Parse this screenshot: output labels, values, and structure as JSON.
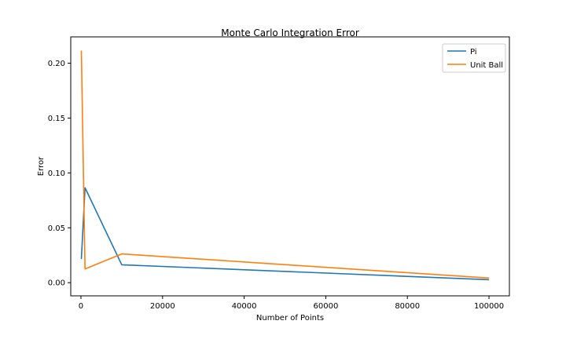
{
  "chart_data": {
    "type": "line",
    "title": "Monte Carlo Integration Error",
    "xlabel": "Number of Points",
    "ylabel": "Error",
    "xlim": [
      -2500,
      105000
    ],
    "ylim": [
      -0.012,
      0.224
    ],
    "x_ticks": [
      0,
      20000,
      40000,
      60000,
      80000,
      100000
    ],
    "x_tick_labels": [
      "0",
      "20000",
      "40000",
      "60000",
      "80000",
      "100000"
    ],
    "y_ticks": [
      0.0,
      0.05,
      0.1,
      0.15,
      0.2
    ],
    "y_tick_labels": [
      "0.00",
      "0.05",
      "0.10",
      "0.15",
      "0.20"
    ],
    "grid": false,
    "legend_position": "top-right",
    "series": [
      {
        "name": "Pi",
        "color": "#1f77b4",
        "x": [
          100,
          1000,
          10000,
          100000
        ],
        "y": [
          0.0215,
          0.0865,
          0.0163,
          0.0027
        ]
      },
      {
        "name": "Unit Ball",
        "color": "#ff7f0e",
        "x": [
          100,
          1000,
          10000,
          100000
        ],
        "y": [
          0.2115,
          0.0125,
          0.0262,
          0.0042
        ]
      }
    ]
  }
}
